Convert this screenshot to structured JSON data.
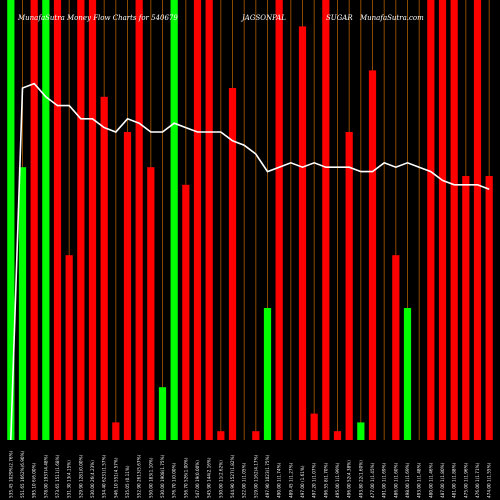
{
  "chart_data": {
    "type": "bar",
    "title_parts": [
      "MunafaSutra Money Flow Charts for 540679",
      "JAGSONPAL",
      "SUGAR",
      "MunafaSutra.com"
    ],
    "ylim": [
      0,
      100
    ],
    "grid": false,
    "legend": "none",
    "colors": {
      "up": "#00ff00",
      "down": "#ff0000",
      "background": "#000000",
      "line": "#ffffff",
      "guide": "#b05a00"
    },
    "categories": [
      "535.45 1029%(2.76%)",
      "551.65 1662%(6.90%)",
      "595.10 6(6.00%)",
      "578.00 1937(4.48%)",
      "573.65 1511(1.68%)",
      "531.30 13(4.15%)",
      "529.90 1281(0.00%)",
      "530.00 26(4.23%)",
      "534.40 6231(1.57%)",
      "546.10 551(4.57%)",
      "535.05 (0.11%)",
      "552.90 2613(5.67%)",
      "550.00 183(1.10%)",
      "530.00 1908(1.75%)",
      "576.70 1(0.00%)",
      "556.70 526(1.00%)",
      "547.00 19(0.00%)",
      "545.90 144(2.16%)",
      "530.00 11(2.62%)",
      "544.90 1527(1.82%)",
      "522.00 1(1.05%)",
      "519.00 1162(4.17%)",
      "497.90 1023(1.75%)",
      "490.00 1(1.74%)",
      "489.45 1(1.27%)",
      "497.00 (1.61%)",
      "497.20 1(1.07%)",
      "496.55 8(1.70%)",
      "495.00 1(1.99%)",
      "496.00 52(4.38%)",
      "493.80 22(1.60%)",
      "477.00 1(1.45%)",
      "491.00 1(1.69%)",
      "486.00 1(1.60%)",
      "498.00 1(1.69%)",
      "493.00 1(1.48%)",
      "480.00 1(1.46%)",
      "487.00 1(1.80%)",
      "481.00 1(1.88%)",
      "475.00 1(1.96%)",
      "476.00 1(1.71%)",
      "474.00 1(1.55%)"
    ],
    "series": [
      {
        "values": [
          100,
          62,
          100,
          100,
          100,
          42,
          100,
          100,
          78,
          4,
          70,
          100,
          62,
          12,
          100,
          58,
          100,
          100,
          2,
          80,
          0,
          2,
          30,
          100,
          0,
          94,
          6,
          100,
          2,
          70,
          4,
          84,
          0,
          42,
          30,
          0,
          100,
          100,
          100,
          60,
          100,
          60
        ],
        "colors": [
          "g",
          "g",
          "r",
          "g",
          "r",
          "r",
          "r",
          "r",
          "r",
          "r",
          "r",
          "r",
          "r",
          "g",
          "g",
          "r",
          "r",
          "r",
          "r",
          "r",
          "r",
          "r",
          "g",
          "r",
          "r",
          "r",
          "r",
          "r",
          "r",
          "r",
          "g",
          "r",
          "g",
          "r",
          "g",
          "g",
          "r",
          "r",
          "r",
          "r",
          "r",
          "r"
        ]
      }
    ],
    "line": {
      "values": [
        0,
        80,
        81,
        78,
        76,
        76,
        73,
        73,
        71,
        70,
        73,
        72,
        70,
        70,
        72,
        71,
        70,
        70,
        70,
        68,
        67,
        65,
        61,
        62,
        63,
        62,
        63,
        62,
        62,
        62,
        61,
        61,
        63,
        62,
        63,
        62,
        61,
        59,
        58,
        58,
        58,
        57
      ]
    }
  }
}
